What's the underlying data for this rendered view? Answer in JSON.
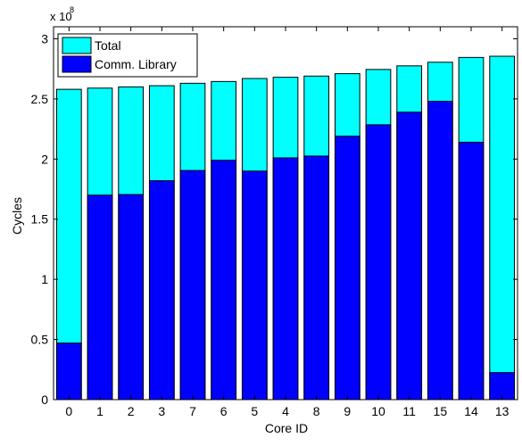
{
  "colors": {
    "total": "#00FFFF",
    "library": "#0000FF",
    "axis": "#000000",
    "background": "#FFFFFF"
  },
  "chart_data": {
    "type": "bar",
    "stacking": "overlaid",
    "categories": [
      "0",
      "1",
      "2",
      "3",
      "7",
      "6",
      "5",
      "4",
      "8",
      "9",
      "10",
      "11",
      "15",
      "14",
      "13"
    ],
    "series": [
      {
        "name": "Total",
        "values": [
          2.58,
          2.59,
          2.6,
          2.61,
          2.63,
          2.645,
          2.67,
          2.68,
          2.69,
          2.71,
          2.745,
          2.775,
          2.805,
          2.845,
          2.855
        ]
      },
      {
        "name": "Comm. Library",
        "values": [
          0.47,
          1.7,
          1.705,
          1.82,
          1.905,
          1.99,
          1.9,
          2.01,
          2.025,
          2.19,
          2.285,
          2.39,
          2.48,
          2.14,
          0.225
        ]
      }
    ],
    "xlabel": "Core ID",
    "ylabel": "Cycles",
    "y_multiplier": "x 10",
    "y_multiplier_exponent": "8",
    "ylim": [
      0,
      3.1
    ],
    "yticks": [
      0,
      0.5,
      1,
      1.5,
      2,
      2.5,
      3
    ],
    "ytick_labels": [
      "0",
      "0.5",
      "1",
      "1.5",
      "2",
      "2.5",
      "3"
    ],
    "grid": false,
    "legend": "top-left"
  }
}
